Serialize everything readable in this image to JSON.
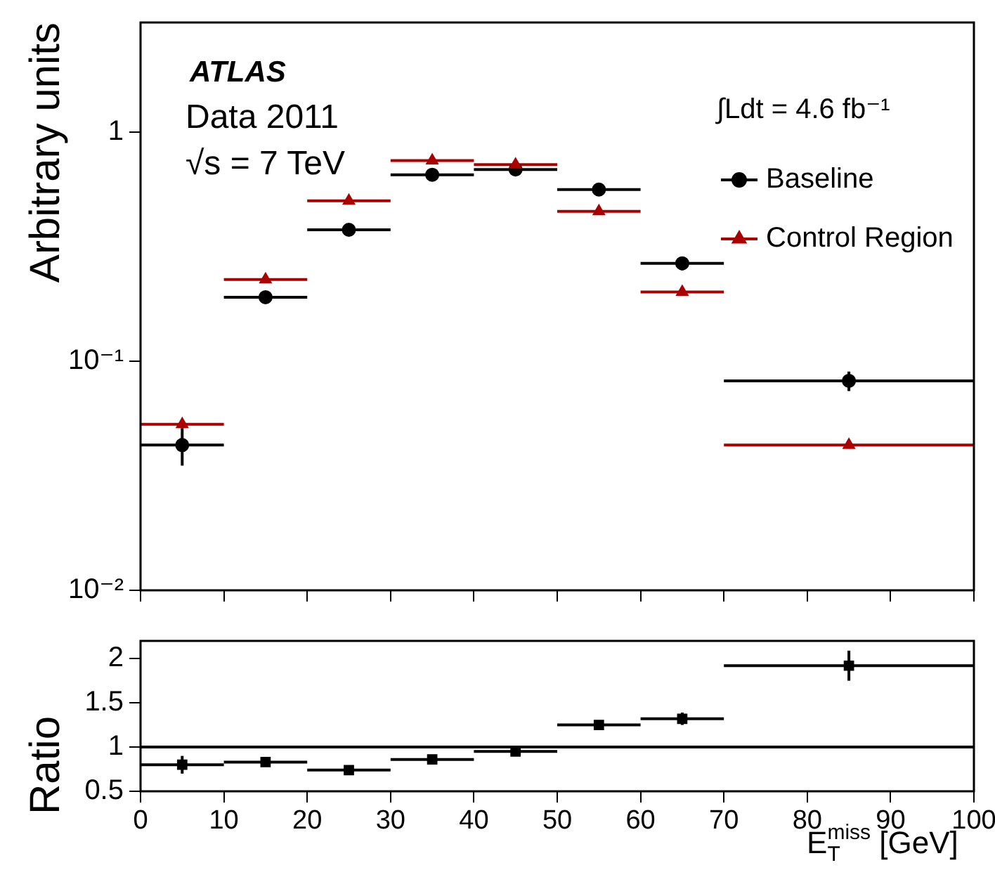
{
  "chart_data": [
    {
      "type": "scatter",
      "ylabel": "Arbitrary units",
      "log": "y",
      "xlim": [
        0,
        100
      ],
      "xticks": [
        0,
        10,
        20,
        30,
        40,
        50,
        60,
        70,
        80,
        90,
        100
      ],
      "ylim": [
        0.01,
        3
      ],
      "yticks": [
        {
          "value": 0.01,
          "label": "10⁻²"
        },
        {
          "value": 0.1,
          "label": "10⁻¹"
        },
        1
      ],
      "tick_labels": "y",
      "grid": false,
      "legend": "top right",
      "annotations": [
        "ATLAS",
        "Data 2011",
        "√s = 7 TeV",
        "∫Ldt = 4.6 fb⁻¹"
      ],
      "series": [
        {
          "name": "Baseline",
          "color": "#000000",
          "marker": "circle",
          "x": [
            5,
            15,
            25,
            35,
            45,
            55,
            65,
            85
          ],
          "values": [
            0.043,
            0.19,
            0.374,
            0.65,
            0.685,
            0.56,
            0.267,
            0.082
          ],
          "xerrors": [
            5,
            5,
            5,
            5,
            5,
            5,
            5,
            15
          ],
          "errors": [
            0.008,
            0.012,
            0.015,
            0.02,
            0.02,
            0.02,
            0.018,
            0.008
          ]
        },
        {
          "name": "Control Region",
          "color": "#aa0000",
          "marker": "triangle",
          "x": [
            5,
            15,
            25,
            35,
            45,
            55,
            65,
            85
          ],
          "values": [
            0.053,
            0.227,
            0.5,
            0.75,
            0.72,
            0.45,
            0.2,
            0.043
          ],
          "xerrors": [
            5,
            5,
            5,
            5,
            5,
            5,
            5,
            15
          ]
        }
      ]
    },
    {
      "type": "scatter",
      "xlabel": "E$_{T}$$^{miss}$ [GeV]",
      "ylabel": "Ratio",
      "xlim": [
        0,
        100
      ],
      "xticks": [
        0,
        10,
        20,
        30,
        40,
        50,
        60,
        70,
        80,
        90,
        100
      ],
      "ylim": [
        0.5,
        2.2
      ],
      "yticks": [
        0.5,
        1,
        1.5,
        2
      ],
      "grid": false,
      "ref_lines": [
        {
          "axis": "y",
          "value": 1,
          "color": "#000000"
        }
      ],
      "series": [
        {
          "color": "#000000",
          "marker": "square",
          "x": [
            5,
            15,
            25,
            35,
            45,
            55,
            65,
            85
          ],
          "values": [
            0.8,
            0.83,
            0.74,
            0.86,
            0.95,
            1.25,
            1.32,
            1.92
          ],
          "xerrors": [
            5,
            5,
            5,
            5,
            5,
            5,
            5,
            15
          ],
          "errors": [
            0.1,
            0.05,
            0.04,
            0.04,
            0.04,
            0.04,
            0.07,
            0.17
          ]
        }
      ]
    }
  ]
}
